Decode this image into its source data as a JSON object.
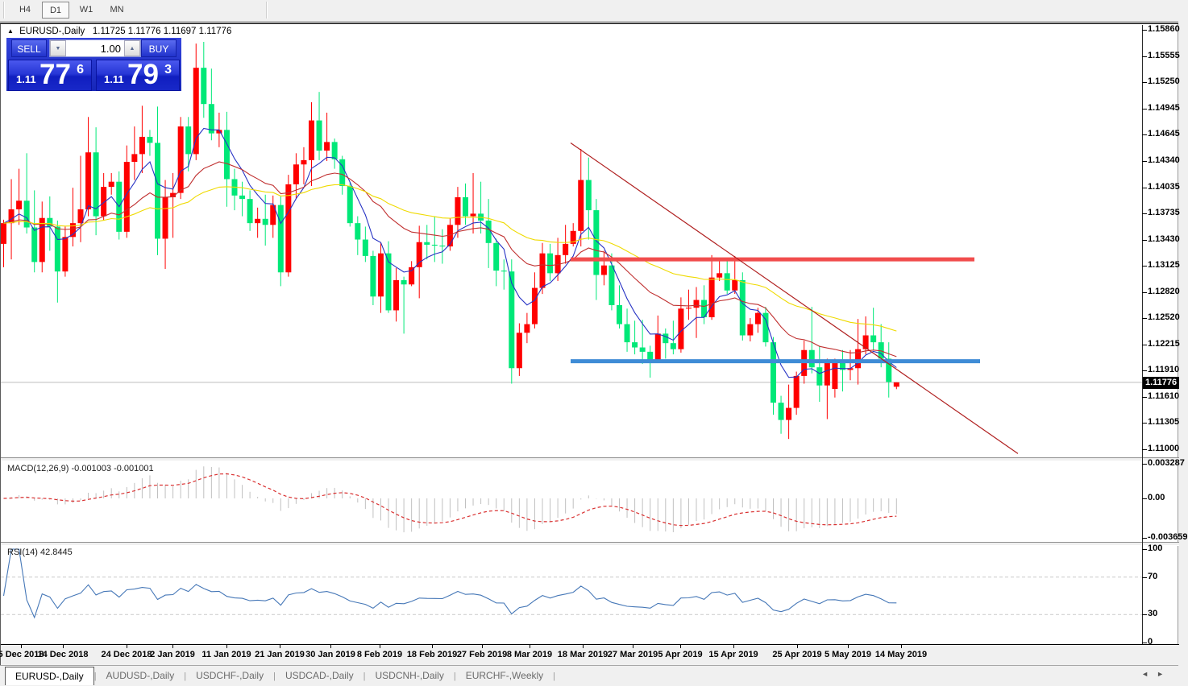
{
  "toolbar": {
    "timeframes": [
      {
        "label": "H4",
        "active": false
      },
      {
        "label": "D1",
        "active": true
      },
      {
        "label": "W1",
        "active": false
      },
      {
        "label": "MN",
        "active": false
      }
    ]
  },
  "chart": {
    "collapse_arrow": "▲",
    "title_symbol": "EURUSD-,Daily",
    "title_ohlc": "1.11725 1.11776 1.11697 1.11776",
    "trade_panel": {
      "sell_label": "SELL",
      "buy_label": "BUY",
      "volume": "1.00",
      "spin_down": "▼",
      "spin_up": "▲",
      "sell_price": {
        "small": "1.11",
        "big": "77",
        "sup": "6"
      },
      "buy_price": {
        "small": "1.11",
        "big": "79",
        "sup": "3"
      }
    },
    "price_tag": "1.11776",
    "y_ticks": [
      "1.15860",
      "1.15555",
      "1.15250",
      "1.14945",
      "1.14645",
      "1.14340",
      "1.14035",
      "1.13735",
      "1.13430",
      "1.13125",
      "1.12820",
      "1.12520",
      "1.12215",
      "1.11910",
      "1.11610",
      "1.11305",
      "1.11000"
    ],
    "x_ticks": [
      {
        "label": "5 Dec 2018",
        "x": 25
      },
      {
        "label": "14 Dec 2018",
        "x": 77
      },
      {
        "label": "24 Dec 2018",
        "x": 156
      },
      {
        "label": "2 Jan 2019",
        "x": 213
      },
      {
        "label": "11 Jan 2019",
        "x": 280
      },
      {
        "label": "21 Jan 2019",
        "x": 346
      },
      {
        "label": "30 Jan 2019",
        "x": 409
      },
      {
        "label": "8 Feb 2019",
        "x": 470
      },
      {
        "label": "18 Feb 2019",
        "x": 535
      },
      {
        "label": "27 Feb 2019",
        "x": 597
      },
      {
        "label": "8 Mar 2019",
        "x": 656
      },
      {
        "label": "18 Mar 2019",
        "x": 722
      },
      {
        "label": "27 Mar 2019",
        "x": 784
      },
      {
        "label": "5 Apr 2019",
        "x": 843
      },
      {
        "label": "15 Apr 2019",
        "x": 909
      },
      {
        "label": "25 Apr 2019",
        "x": 988
      },
      {
        "label": "5 May 2019",
        "x": 1051
      },
      {
        "label": "14 May 2019",
        "x": 1117
      }
    ]
  },
  "macd": {
    "label": "MACD(12,26,9)",
    "value_main": "-0.001003",
    "value_signal": "-0.001001",
    "ticks": [
      {
        "label": "0.003287",
        "y": 576
      },
      {
        "label": "0.00",
        "y": 619
      },
      {
        "label": "-0.003659",
        "y": 668
      }
    ]
  },
  "rsi": {
    "label": "RSI(14)",
    "value": "42.8445",
    "levels": [
      70,
      30
    ],
    "ticks": [
      {
        "label": "100",
        "v": 100
      },
      {
        "label": "70",
        "v": 70
      },
      {
        "label": "30",
        "v": 30
      },
      {
        "label": "0",
        "v": 0
      }
    ]
  },
  "tabbar": {
    "tabs": [
      {
        "label": "EURUSD-,Daily",
        "active": true
      },
      {
        "label": "AUDUSD-,Daily",
        "active": false
      },
      {
        "label": "USDCHF-,Daily",
        "active": false
      },
      {
        "label": "USDCAD-,Daily",
        "active": false
      },
      {
        "label": "USDCNH-,Daily",
        "active": false
      },
      {
        "label": "EURCHF-,Weekly",
        "active": false
      }
    ],
    "nav_left": "◄",
    "nav_right": "►"
  },
  "colors": {
    "bull": "#FF0000",
    "bear": "#00E878",
    "macd_hist": "#C0C0C0",
    "macd_signal": "#D93030",
    "rsi_line": "#4577B7",
    "rsi_levels": "#C9C9C9",
    "bid_line": "#BEBEBE",
    "tag_bg": "#000000",
    "resistance": "#F14C4C",
    "support": "#3F8CD6",
    "trendline": "#B02020"
  },
  "chart_data": {
    "type": "candlestick",
    "symbol": "EURUSD",
    "timeframe": "Daily",
    "ohlc": [
      [
        1.1338,
        1.1366,
        1.1311,
        1.1362
      ],
      [
        1.1362,
        1.1413,
        1.132,
        1.1378
      ],
      [
        1.1378,
        1.1425,
        1.136,
        1.1388
      ],
      [
        1.1388,
        1.1443,
        1.135,
        1.1357
      ],
      [
        1.1357,
        1.14,
        1.1305,
        1.1317
      ],
      [
        1.1317,
        1.1387,
        1.1305,
        1.1368
      ],
      [
        1.1368,
        1.1393,
        1.133,
        1.1358
      ],
      [
        1.1358,
        1.1365,
        1.127,
        1.1306
      ],
      [
        1.1306,
        1.1358,
        1.13,
        1.1346
      ],
      [
        1.1346,
        1.1403,
        1.1335,
        1.1362
      ],
      [
        1.1362,
        1.144,
        1.134,
        1.1378
      ],
      [
        1.1378,
        1.1485,
        1.137,
        1.1444
      ],
      [
        1.1444,
        1.1473,
        1.1348,
        1.137
      ],
      [
        1.137,
        1.142,
        1.1365,
        1.1404
      ],
      [
        1.1404,
        1.142,
        1.1395,
        1.141
      ],
      [
        1.141,
        1.1422,
        1.1343,
        1.1352
      ],
      [
        1.1352,
        1.1452,
        1.1345,
        1.1433
      ],
      [
        1.1433,
        1.1474,
        1.1412,
        1.1442
      ],
      [
        1.1442,
        1.1498,
        1.142,
        1.1462
      ],
      [
        1.1462,
        1.147,
        1.144,
        1.1455
      ],
      [
        1.1455,
        1.1497,
        1.1325,
        1.1344
      ],
      [
        1.1344,
        1.1412,
        1.1309,
        1.1392
      ],
      [
        1.1392,
        1.142,
        1.1345,
        1.1397
      ],
      [
        1.1397,
        1.1485,
        1.139,
        1.1474
      ],
      [
        1.1474,
        1.1485,
        1.1422,
        1.1442
      ],
      [
        1.1442,
        1.157,
        1.1435,
        1.1542
      ],
      [
        1.1542,
        1.1572,
        1.1484,
        1.15
      ],
      [
        1.15,
        1.1541,
        1.1458,
        1.1466
      ],
      [
        1.1466,
        1.149,
        1.145,
        1.147
      ],
      [
        1.147,
        1.1491,
        1.1381,
        1.1413
      ],
      [
        1.1413,
        1.1425,
        1.1377,
        1.1394
      ],
      [
        1.1394,
        1.141,
        1.137,
        1.139
      ],
      [
        1.139,
        1.14,
        1.1353,
        1.1362
      ],
      [
        1.1362,
        1.138,
        1.1345,
        1.1367
      ],
      [
        1.1367,
        1.1395,
        1.1336,
        1.136
      ],
      [
        1.136,
        1.1394,
        1.1345,
        1.1383
      ],
      [
        1.1383,
        1.1393,
        1.1289,
        1.1305
      ],
      [
        1.1305,
        1.1418,
        1.13,
        1.1407
      ],
      [
        1.1407,
        1.1443,
        1.139,
        1.143
      ],
      [
        1.143,
        1.145,
        1.1407,
        1.1435
      ],
      [
        1.1435,
        1.1502,
        1.1405,
        1.1481
      ],
      [
        1.1481,
        1.1514,
        1.1435,
        1.1446
      ],
      [
        1.1446,
        1.149,
        1.1434,
        1.1456
      ],
      [
        1.1456,
        1.146,
        1.1425,
        1.1436
      ],
      [
        1.1436,
        1.144,
        1.1395,
        1.1405
      ],
      [
        1.1405,
        1.141,
        1.1358,
        1.1362
      ],
      [
        1.1362,
        1.137,
        1.1325,
        1.1343
      ],
      [
        1.1343,
        1.1358,
        1.1317,
        1.1324
      ],
      [
        1.1324,
        1.133,
        1.1267,
        1.1277
      ],
      [
        1.1277,
        1.134,
        1.1258,
        1.1327
      ],
      [
        1.1327,
        1.1341,
        1.1258,
        1.1261
      ],
      [
        1.1261,
        1.131,
        1.1248,
        1.1296
      ],
      [
        1.1296,
        1.13,
        1.1234,
        1.1291
      ],
      [
        1.1291,
        1.1318,
        1.1289,
        1.1311
      ],
      [
        1.1311,
        1.1359,
        1.1275,
        1.134
      ],
      [
        1.134,
        1.136,
        1.132,
        1.1337
      ],
      [
        1.1337,
        1.137,
        1.1317,
        1.1336
      ],
      [
        1.1336,
        1.1355,
        1.1315,
        1.1335
      ],
      [
        1.1335,
        1.1368,
        1.133,
        1.136
      ],
      [
        1.136,
        1.1404,
        1.1345,
        1.1392
      ],
      [
        1.1392,
        1.1408,
        1.136,
        1.137
      ],
      [
        1.137,
        1.142,
        1.135,
        1.1373
      ],
      [
        1.1373,
        1.141,
        1.135,
        1.1365
      ],
      [
        1.1365,
        1.139,
        1.131,
        1.1339
      ],
      [
        1.1339,
        1.1344,
        1.1289,
        1.1307
      ],
      [
        1.1307,
        1.132,
        1.1285,
        1.1306
      ],
      [
        1.1306,
        1.132,
        1.1176,
        1.1194
      ],
      [
        1.1194,
        1.1246,
        1.1185,
        1.1235
      ],
      [
        1.1235,
        1.1258,
        1.1223,
        1.1245
      ],
      [
        1.1245,
        1.1305,
        1.124,
        1.1287
      ],
      [
        1.1287,
        1.1339,
        1.128,
        1.1327
      ],
      [
        1.1327,
        1.1338,
        1.1295,
        1.1304
      ],
      [
        1.1304,
        1.1345,
        1.1295,
        1.1325
      ],
      [
        1.1325,
        1.136,
        1.1315,
        1.1338
      ],
      [
        1.1338,
        1.1362,
        1.1335,
        1.1353
      ],
      [
        1.1353,
        1.1448,
        1.1335,
        1.1412
      ],
      [
        1.1412,
        1.1438,
        1.1343,
        1.1377
      ],
      [
        1.1377,
        1.139,
        1.1273,
        1.1302
      ],
      [
        1.1302,
        1.133,
        1.129,
        1.1313
      ],
      [
        1.1313,
        1.1327,
        1.1261,
        1.1267
      ],
      [
        1.1267,
        1.129,
        1.124,
        1.1245
      ],
      [
        1.1245,
        1.1263,
        1.1213,
        1.1224
      ],
      [
        1.1224,
        1.1249,
        1.121,
        1.1218
      ],
      [
        1.1218,
        1.125,
        1.1199,
        1.1213
      ],
      [
        1.1213,
        1.122,
        1.1183,
        1.1204
      ],
      [
        1.1204,
        1.1255,
        1.12,
        1.1234
      ],
      [
        1.1234,
        1.124,
        1.1205,
        1.1223
      ],
      [
        1.1223,
        1.1249,
        1.121,
        1.1216
      ],
      [
        1.1216,
        1.1276,
        1.1212,
        1.1263
      ],
      [
        1.1263,
        1.1285,
        1.125,
        1.1264
      ],
      [
        1.1264,
        1.1288,
        1.1229,
        1.1273
      ],
      [
        1.1273,
        1.129,
        1.1245,
        1.1253
      ],
      [
        1.1253,
        1.1325,
        1.125,
        1.1299
      ],
      [
        1.1299,
        1.132,
        1.1295,
        1.1304
      ],
      [
        1.1304,
        1.1322,
        1.128,
        1.1284
      ],
      [
        1.1284,
        1.1324,
        1.128,
        1.1296
      ],
      [
        1.1296,
        1.1305,
        1.1226,
        1.1232
      ],
      [
        1.1232,
        1.1252,
        1.1225,
        1.1245
      ],
      [
        1.1245,
        1.1264,
        1.1235,
        1.1258
      ],
      [
        1.1258,
        1.1265,
        1.1219,
        1.1224
      ],
      [
        1.1224,
        1.123,
        1.114,
        1.1154
      ],
      [
        1.1154,
        1.1162,
        1.1118,
        1.1134
      ],
      [
        1.1134,
        1.1175,
        1.1112,
        1.1148
      ],
      [
        1.1148,
        1.119,
        1.114,
        1.1185
      ],
      [
        1.1185,
        1.1226,
        1.1176,
        1.1215
      ],
      [
        1.1215,
        1.1265,
        1.1188,
        1.1195
      ],
      [
        1.1195,
        1.122,
        1.1155,
        1.1174
      ],
      [
        1.1174,
        1.1205,
        1.1135,
        1.12
      ],
      [
        1.117,
        1.1205,
        1.116,
        1.1201
      ],
      [
        1.1201,
        1.1215,
        1.1167,
        1.1192
      ],
      [
        1.1192,
        1.1215,
        1.118,
        1.1194
      ],
      [
        1.1194,
        1.1251,
        1.1175,
        1.1216
      ],
      [
        1.1216,
        1.1254,
        1.121,
        1.1232
      ],
      [
        1.1232,
        1.1264,
        1.1215,
        1.1224
      ],
      [
        1.1224,
        1.1245,
        1.1195,
        1.1205
      ],
      [
        1.1205,
        1.1224,
        1.116,
        1.1178
      ],
      [
        1.11725,
        1.11776,
        1.11697,
        1.11776
      ]
    ],
    "moving_averages": [
      {
        "period": 6,
        "color": "#2733C4"
      },
      {
        "period": 20,
        "color": "#C03030"
      },
      {
        "period": 45,
        "color": "#EFDA00"
      }
    ],
    "indicators": {
      "macd": {
        "fast": 12,
        "slow": 26,
        "signal": 9
      },
      "rsi": {
        "period": 14
      }
    },
    "objects": {
      "resistance_line": {
        "price": 1.132,
        "x1": 707,
        "x2": 1208,
        "width": 5
      },
      "support_line": {
        "price": 1.1202,
        "x1": 707,
        "x2": 1215,
        "width": 5
      },
      "trendline": {
        "x1": 707,
        "p1": 1.1455,
        "x2": 1262,
        "p2": 1.1095
      }
    },
    "current_bid": 1.11776,
    "axis": {
      "price_top": 1.1586,
      "price_bottom": 1.11,
      "macd_zero": 0.0,
      "rsi_range": [
        0,
        100
      ]
    }
  }
}
